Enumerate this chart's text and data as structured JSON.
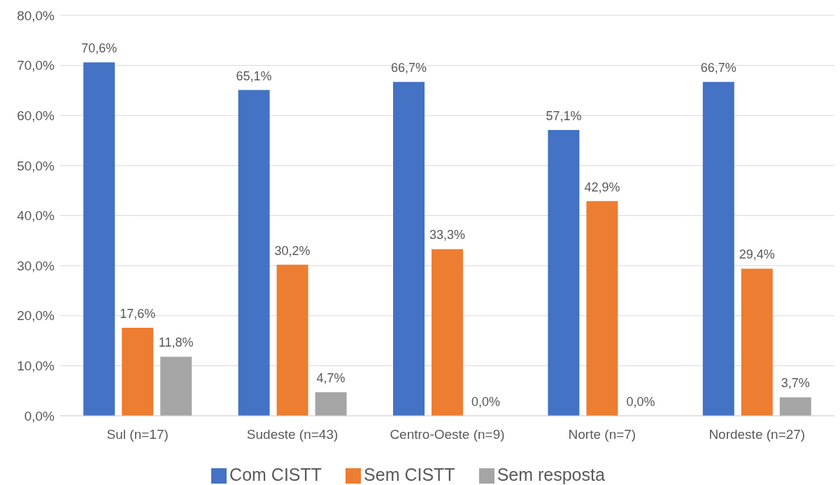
{
  "chart_data": {
    "type": "bar",
    "categories": [
      "Sul (n=17)",
      "Sudeste (n=43)",
      "Centro-Oeste (n=9)",
      "Norte (n=7)",
      "Nordeste (n=27)"
    ],
    "series": [
      {
        "name": "Com CISTT",
        "color": "#4472c4",
        "values": [
          70.6,
          65.1,
          66.7,
          57.1,
          66.7
        ],
        "value_labels": [
          "70,6%",
          "65,1%",
          "66,7%",
          "57,1%",
          "66,7%"
        ]
      },
      {
        "name": "Sem CISTT",
        "color": "#ed7d31",
        "values": [
          17.6,
          30.2,
          33.3,
          42.9,
          29.4
        ],
        "value_labels": [
          "17,6%",
          "30,2%",
          "33,3%",
          "42,9%",
          "29,4%"
        ]
      },
      {
        "name": "Sem resposta",
        "color": "#a5a5a5",
        "values": [
          11.8,
          4.7,
          0,
          0,
          3.7
        ],
        "value_labels": [
          "11,8%",
          "4,7%",
          "0,0%",
          "0,0%",
          "3,7%"
        ]
      }
    ],
    "ylim": [
      0,
      80
    ],
    "yticks": [
      {
        "value": 0,
        "label": "0,0%"
      },
      {
        "value": 10,
        "label": "10,0%"
      },
      {
        "value": 20,
        "label": "20,0%"
      },
      {
        "value": 30,
        "label": "30,0%"
      },
      {
        "value": 40,
        "label": "40,0%"
      },
      {
        "value": 50,
        "label": "50,0%"
      },
      {
        "value": 60,
        "label": "60,0%"
      },
      {
        "value": 70,
        "label": "70,0%"
      },
      {
        "value": 80,
        "label": "80,0%"
      }
    ],
    "grid": "y",
    "legend": "bottom"
  }
}
